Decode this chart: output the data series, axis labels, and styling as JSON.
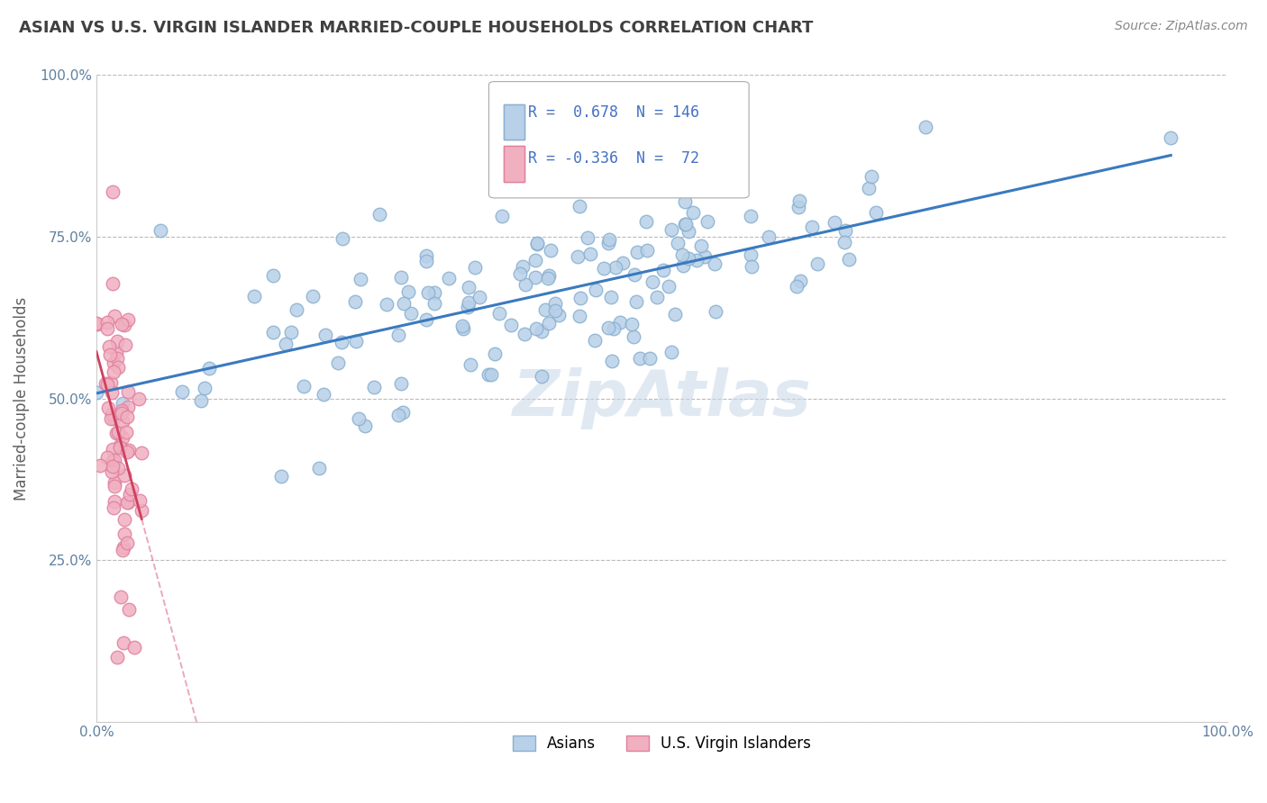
{
  "title": "ASIAN VS U.S. VIRGIN ISLANDER MARRIED-COUPLE HOUSEHOLDS CORRELATION CHART",
  "source": "Source: ZipAtlas.com",
  "ylabel": "Married-couple Households",
  "xlim": [
    0,
    1.0
  ],
  "ylim": [
    0,
    1.0
  ],
  "ytick_values": [
    0.0,
    0.25,
    0.5,
    0.75,
    1.0
  ],
  "R_asian": 0.678,
  "N_asian": 146,
  "R_virgin": -0.336,
  "N_virgin": 72,
  "blue_scatter_face": "#b8d0e8",
  "blue_scatter_edge": "#8ab0d0",
  "blue_line": "#3a7abf",
  "pink_scatter_face": "#f0b0c0",
  "pink_scatter_edge": "#e080a0",
  "pink_line": "#d04060",
  "watermark_color": "#c8d8e8",
  "background_color": "#ffffff",
  "grid_color": "#bbbbbb",
  "title_color": "#404040",
  "source_color": "#888888",
  "axis_label_color": "#606060",
  "tick_color": "#6080a0",
  "legend_text_color": "#4472c4",
  "legend_r_color": "#000000"
}
